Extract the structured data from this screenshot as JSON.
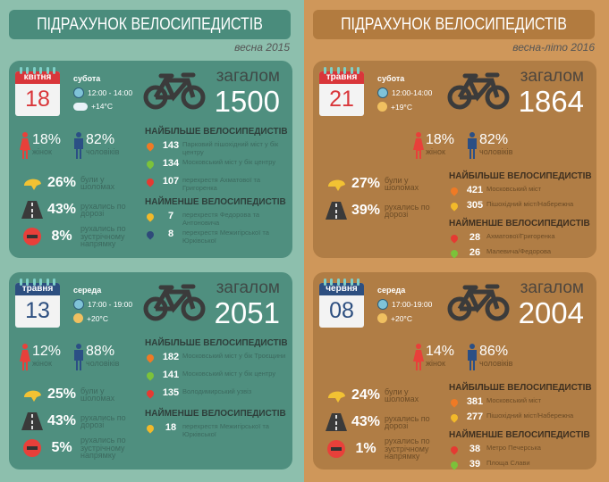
{
  "colors": {
    "female": "#e8403a",
    "male": "#2b4f85",
    "helmet": "#f2c233",
    "wrong_way": "#e8403a",
    "road": "#3a3a3a",
    "pin_orange": "#ef7a25",
    "pin_green": "#7cc23a",
    "pin_red": "#e53a32",
    "pin_yellow": "#f2b92a",
    "pin_navy": "#2f4a7a",
    "cal_red": "#d9363a",
    "cal_blue": "#2d4f80"
  },
  "sections": [
    {
      "title": "ПІДРАХУНОК ВЕЛОСИПЕДИСТІВ",
      "season": "весна 2015",
      "panels": [
        {
          "layout": "a",
          "month": "квітня",
          "day": "18",
          "cal_color": "red",
          "dow": "субота",
          "time": "12:00 - 14:00",
          "weather": "cloud",
          "temp": "+14°C",
          "total_label": "загалом",
          "total": "1500",
          "female": "18%",
          "female_label": "жінок",
          "male": "82%",
          "male_label": "чоловіків",
          "stats": [
            {
              "icon": "helmet-icon",
              "pct": "26%",
              "label": "були у шоломах"
            },
            {
              "icon": "road-icon",
              "pct": "43%",
              "label": "рухались по дорозі"
            },
            {
              "icon": "no-entry-icon",
              "pct": "8%",
              "label": "рухались по зустрічному напрямку"
            }
          ],
          "most_title": "НАЙБІЛЬШЕ ВЕЛОСИПЕДИСТІВ",
          "most": [
            {
              "pin": "pin_orange",
              "count": "143",
              "place": "Парковий пішохідний міст у бік центру"
            },
            {
              "pin": "pin_green",
              "count": "134",
              "place": "Московський міст у бік центру"
            },
            {
              "pin": "pin_red",
              "count": "107",
              "place": "перехрестя Ахматової та Григоренка"
            }
          ],
          "least_title": "НАЙМЕНШЕ ВЕЛОСИПЕДИСТІВ",
          "least": [
            {
              "pin": "pin_yellow",
              "count": "7",
              "place": "перехрестя Федорова та Антоновича"
            },
            {
              "pin": "pin_navy",
              "count": "8",
              "place": "перехрестя Межигірської та Юрківської"
            }
          ]
        },
        {
          "layout": "a",
          "month": "травня",
          "day": "13",
          "cal_color": "blue",
          "dow": "середа",
          "time": "17:00 - 19:00",
          "weather": "sun",
          "temp": "+20°C",
          "total_label": "загалом",
          "total": "2051",
          "female": "12%",
          "female_label": "жінок",
          "male": "88%",
          "male_label": "чоловіків",
          "stats": [
            {
              "icon": "helmet-icon",
              "pct": "25%",
              "label": "були у шоломах"
            },
            {
              "icon": "road-icon",
              "pct": "43%",
              "label": "рухались по дорозі"
            },
            {
              "icon": "no-entry-icon",
              "pct": "5%",
              "label": "рухались по зустрічному напрямку"
            }
          ],
          "most_title": "НАЙБІЛЬШЕ ВЕЛОСИПЕДИСТІВ",
          "most": [
            {
              "pin": "pin_orange",
              "count": "182",
              "place": "Московський міст у бік Троєщини"
            },
            {
              "pin": "pin_green",
              "count": "141",
              "place": "Московський міст у бік центру"
            },
            {
              "pin": "pin_red",
              "count": "135",
              "place": "Володимирський узвіз"
            }
          ],
          "least_title": "НАЙМЕНШЕ ВЕЛОСИПЕДИСТІВ",
          "least": [
            {
              "pin": "pin_yellow",
              "count": "18",
              "place": "перехрестя Межигірської та Юрківської"
            }
          ]
        }
      ]
    },
    {
      "title": "ПІДРАХУНОК ВЕЛОСИПЕДИСТІВ",
      "season": "весна-літо 2016",
      "panels": [
        {
          "layout": "b",
          "month": "травня",
          "day": "21",
          "cal_color": "red",
          "dow": "субота",
          "time": "12:00-14:00",
          "weather": "sun",
          "temp": "+19°C",
          "total_label": "загалом",
          "total": "1864",
          "female": "18%",
          "female_label": "жінок",
          "male": "82%",
          "male_label": "чоловіків",
          "stats": [
            {
              "icon": "helmet-icon",
              "pct": "27%",
              "label": "були у шоломах"
            },
            {
              "icon": "road-icon",
              "pct": "39%",
              "label": "рухались по дорозі"
            }
          ],
          "most_title": "НАЙБІЛЬШЕ ВЕЛОСИПЕДИСТІВ",
          "most": [
            {
              "pin": "pin_orange",
              "count": "421",
              "place": "Московський міст"
            },
            {
              "pin": "pin_yellow",
              "count": "305",
              "place": "Пішохідний міст/Набережна"
            }
          ],
          "least_title": "НАЙМЕНШЕ ВЕЛОСИПЕДИСТІВ",
          "least": [
            {
              "pin": "pin_red",
              "count": "28",
              "place": "Ахматової/Григоренка"
            },
            {
              "pin": "pin_green",
              "count": "26",
              "place": "Малевича/Федорова"
            }
          ]
        },
        {
          "layout": "b",
          "month": "червня",
          "day": "08",
          "cal_color": "blue",
          "dow": "середа",
          "time": "17:00-19:00",
          "weather": "sun",
          "temp": "+20°C",
          "total_label": "загалом",
          "total": "2004",
          "female": "14%",
          "female_label": "жінок",
          "male": "86%",
          "male_label": "чоловіків",
          "stats": [
            {
              "icon": "helmet-icon",
              "pct": "24%",
              "label": "були у шоломах"
            },
            {
              "icon": "road-icon",
              "pct": "43%",
              "label": "рухались по дорозі"
            },
            {
              "icon": "no-entry-icon",
              "pct": "1%",
              "label": "рухались по зустрічному напрямку"
            }
          ],
          "most_title": "НАЙБІЛЬШЕ ВЕЛОСИПЕДИСТІВ",
          "most": [
            {
              "pin": "pin_orange",
              "count": "381",
              "place": "Московський міст"
            },
            {
              "pin": "pin_yellow",
              "count": "277",
              "place": "Пішохідний міст/Набережна"
            }
          ],
          "least_title": "НАЙМЕНШЕ ВЕЛОСИПЕДИСТІВ",
          "least": [
            {
              "pin": "pin_red",
              "count": "38",
              "place": "Метро Печерська"
            },
            {
              "pin": "pin_green",
              "count": "39",
              "place": "Площа Слави"
            }
          ]
        }
      ]
    }
  ]
}
